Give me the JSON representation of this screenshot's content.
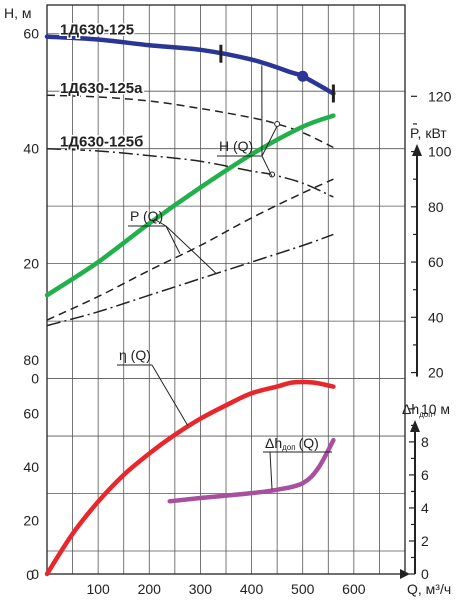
{
  "chart_data": {
    "type": "line",
    "x": {
      "label": "Q, м³/ч",
      "range": [
        0,
        700
      ],
      "ticks": [
        100,
        200,
        300,
        400,
        500,
        600
      ],
      "tick_labels": [
        "100",
        "200",
        "300",
        "400",
        "500",
        "600"
      ],
      "origin_label": "0",
      "grid": true
    },
    "head_panel": {
      "ylabel": "H, м",
      "ylim": [
        -34,
        65
      ],
      "tick_values": [
        60,
        40,
        20,
        0
      ],
      "tick_labels": [
        "60",
        "40",
        "20",
        "0"
      ],
      "curve_label": "H (Q)",
      "series": [
        {
          "name": "1Д630-125",
          "style": "solid-bold",
          "color": "#2b3596",
          "x": [
            0,
            100,
            200,
            300,
            400,
            480,
            500,
            560
          ],
          "y": [
            59.5,
            59,
            58,
            57.2,
            55.5,
            53.2,
            52.6,
            49.6
          ],
          "markers": [
            {
              "type": "bar",
              "x": 340
            },
            {
              "type": "dot",
              "x": 500
            },
            {
              "type": "bar",
              "x": 560
            }
          ]
        },
        {
          "name": "1Д630-125а",
          "style": "dashed",
          "color": "#222222",
          "x": [
            0,
            100,
            200,
            300,
            400,
            450,
            500,
            560
          ],
          "y": [
            49.3,
            49,
            48.3,
            47,
            45.4,
            44.3,
            42.8,
            40.2
          ],
          "markers": [
            {
              "type": "ring",
              "x": 450
            }
          ]
        },
        {
          "name": "1Д630-125б",
          "style": "dashdot",
          "color": "#222222",
          "x": [
            0,
            100,
            200,
            300,
            400,
            440,
            500,
            560
          ],
          "y": [
            40,
            39.6,
            38.8,
            37.8,
            36.1,
            35.5,
            34,
            31.6
          ],
          "markers": [
            {
              "type": "ring",
              "x": 440
            }
          ]
        }
      ]
    },
    "power_panel": {
      "ylabel": "P, кВт",
      "ylim": [
        15.5,
        154.5
      ],
      "tick_values": [
        120,
        100,
        80,
        60,
        40,
        20
      ],
      "tick_labels": [
        "120",
        "100",
        "80",
        "60",
        "40",
        "20"
      ],
      "curve_label": "P (Q)",
      "series": [
        {
          "name": "1Д630-125",
          "style": "solid-bold",
          "color": "#22b04a",
          "x": [
            0,
            100,
            200,
            300,
            400,
            500,
            560
          ],
          "y": [
            48,
            60,
            74,
            87,
            99,
            109,
            113
          ]
        },
        {
          "name": "1Д630-125а",
          "style": "dashed",
          "color": "#222222",
          "x": [
            0,
            100,
            200,
            300,
            400,
            500,
            560
          ],
          "y": [
            39,
            47.5,
            57,
            66,
            76,
            85,
            90
          ]
        },
        {
          "name": "1Д630-125б",
          "style": "dashdot",
          "color": "#222222",
          "x": [
            0,
            100,
            200,
            300,
            400,
            500,
            560
          ],
          "y": [
            37,
            42,
            48,
            54,
            60,
            66,
            70
          ]
        }
      ]
    },
    "efficiency_panel": {
      "ylabel": "",
      "ylim": [
        0,
        90
      ],
      "tick_values": [
        80,
        60,
        40,
        20,
        0
      ],
      "tick_labels": [
        "80",
        "60",
        "40",
        "20",
        "0"
      ],
      "curve_label": "η (Q)",
      "series": [
        {
          "name": "η (Q)",
          "style": "solid-bold",
          "color": "#e8262b",
          "x": [
            0,
            50,
            100,
            150,
            200,
            250,
            300,
            350,
            400,
            450,
            480,
            520,
            560
          ],
          "y": [
            0,
            15,
            27,
            37,
            45,
            52,
            58,
            63,
            67.5,
            70,
            71.5,
            71.5,
            70
          ]
        }
      ]
    },
    "npsh_panel": {
      "ylabel": "Δh",
      "ylabel_sub": "доп",
      "ylabel_unit": ", м",
      "ylim": [
        0,
        10.9
      ],
      "tick_values": [
        10,
        8,
        6,
        4,
        2,
        0
      ],
      "tick_labels": [
        "10",
        "8",
        "6",
        "4",
        "2",
        "0"
      ],
      "curve_label": "Δh",
      "curve_label_sub": "доп",
      "curve_label_tail": "(Q)",
      "series": [
        {
          "name": "Δh доп (Q)",
          "style": "solid-bold",
          "color": "#a84fa0",
          "x": [
            240,
            300,
            400,
            450,
            500,
            530,
            560
          ],
          "y": [
            4.4,
            4.6,
            4.9,
            5.1,
            5.5,
            6.4,
            8.1
          ]
        }
      ]
    }
  }
}
